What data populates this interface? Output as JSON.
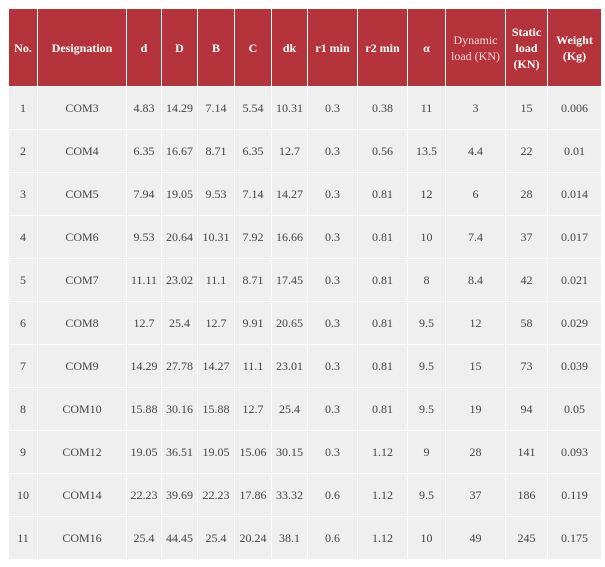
{
  "table": {
    "header": [
      "No.",
      "Designation",
      "d",
      "D",
      "B",
      "C",
      "dk",
      "r1 min",
      "r2 min",
      "α",
      "Dynamic load (KN)",
      "Static load (KN)",
      "Weight (Kg)"
    ],
    "rows": [
      [
        "1",
        "COM3",
        "4.83",
        "14.29",
        "7.14",
        "5.54",
        "10.31",
        "0.3",
        "0.38",
        "11",
        "3",
        "15",
        "0.006"
      ],
      [
        "2",
        "COM4",
        "6.35",
        "16.67",
        "8.71",
        "6.35",
        "12.7",
        "0.3",
        "0.56",
        "13.5",
        "4.4",
        "22",
        "0.01"
      ],
      [
        "3",
        "COM5",
        "7.94",
        "19.05",
        "9.53",
        "7.14",
        "14.27",
        "0.3",
        "0.81",
        "12",
        "6",
        "28",
        "0.014"
      ],
      [
        "4",
        "COM6",
        "9.53",
        "20.64",
        "10.31",
        "7.92",
        "16.66",
        "0.3",
        "0.81",
        "10",
        "7.4",
        "37",
        "0.017"
      ],
      [
        "5",
        "COM7",
        "11.11",
        "23.02",
        "11.1",
        "8.71",
        "17.45",
        "0.3",
        "0.81",
        "8",
        "8.4",
        "42",
        "0.021"
      ],
      [
        "6",
        "COM8",
        "12.7",
        "25.4",
        "12.7",
        "9.91",
        "20.65",
        "0.3",
        "0.81",
        "9.5",
        "12",
        "58",
        "0.029"
      ],
      [
        "7",
        "COM9",
        "14.29",
        "27.78",
        "14.27",
        "11.1",
        "23.01",
        "0.3",
        "0.81",
        "9.5",
        "15",
        "73",
        "0.039"
      ],
      [
        "8",
        "COM10",
        "15.88",
        "30.16",
        "15.88",
        "12.7",
        "25.4",
        "0.3",
        "0.81",
        "9.5",
        "19",
        "94",
        "0.05"
      ],
      [
        "9",
        "COM12",
        "19.05",
        "36.51",
        "19.05",
        "15.06",
        "30.15",
        "0.3",
        "1.12",
        "9",
        "28",
        "141",
        "0.093"
      ],
      [
        "10",
        "COM14",
        "22.23",
        "39.69",
        "22.23",
        "17.86",
        "33.32",
        "0.6",
        "1.12",
        "9.5",
        "37",
        "186",
        "0.119"
      ],
      [
        "11",
        "COM16",
        "25.4",
        "44.45",
        "25.4",
        "20.24",
        "38.1",
        "0.6",
        "1.12",
        "10",
        "49",
        "245",
        "0.175"
      ]
    ]
  }
}
